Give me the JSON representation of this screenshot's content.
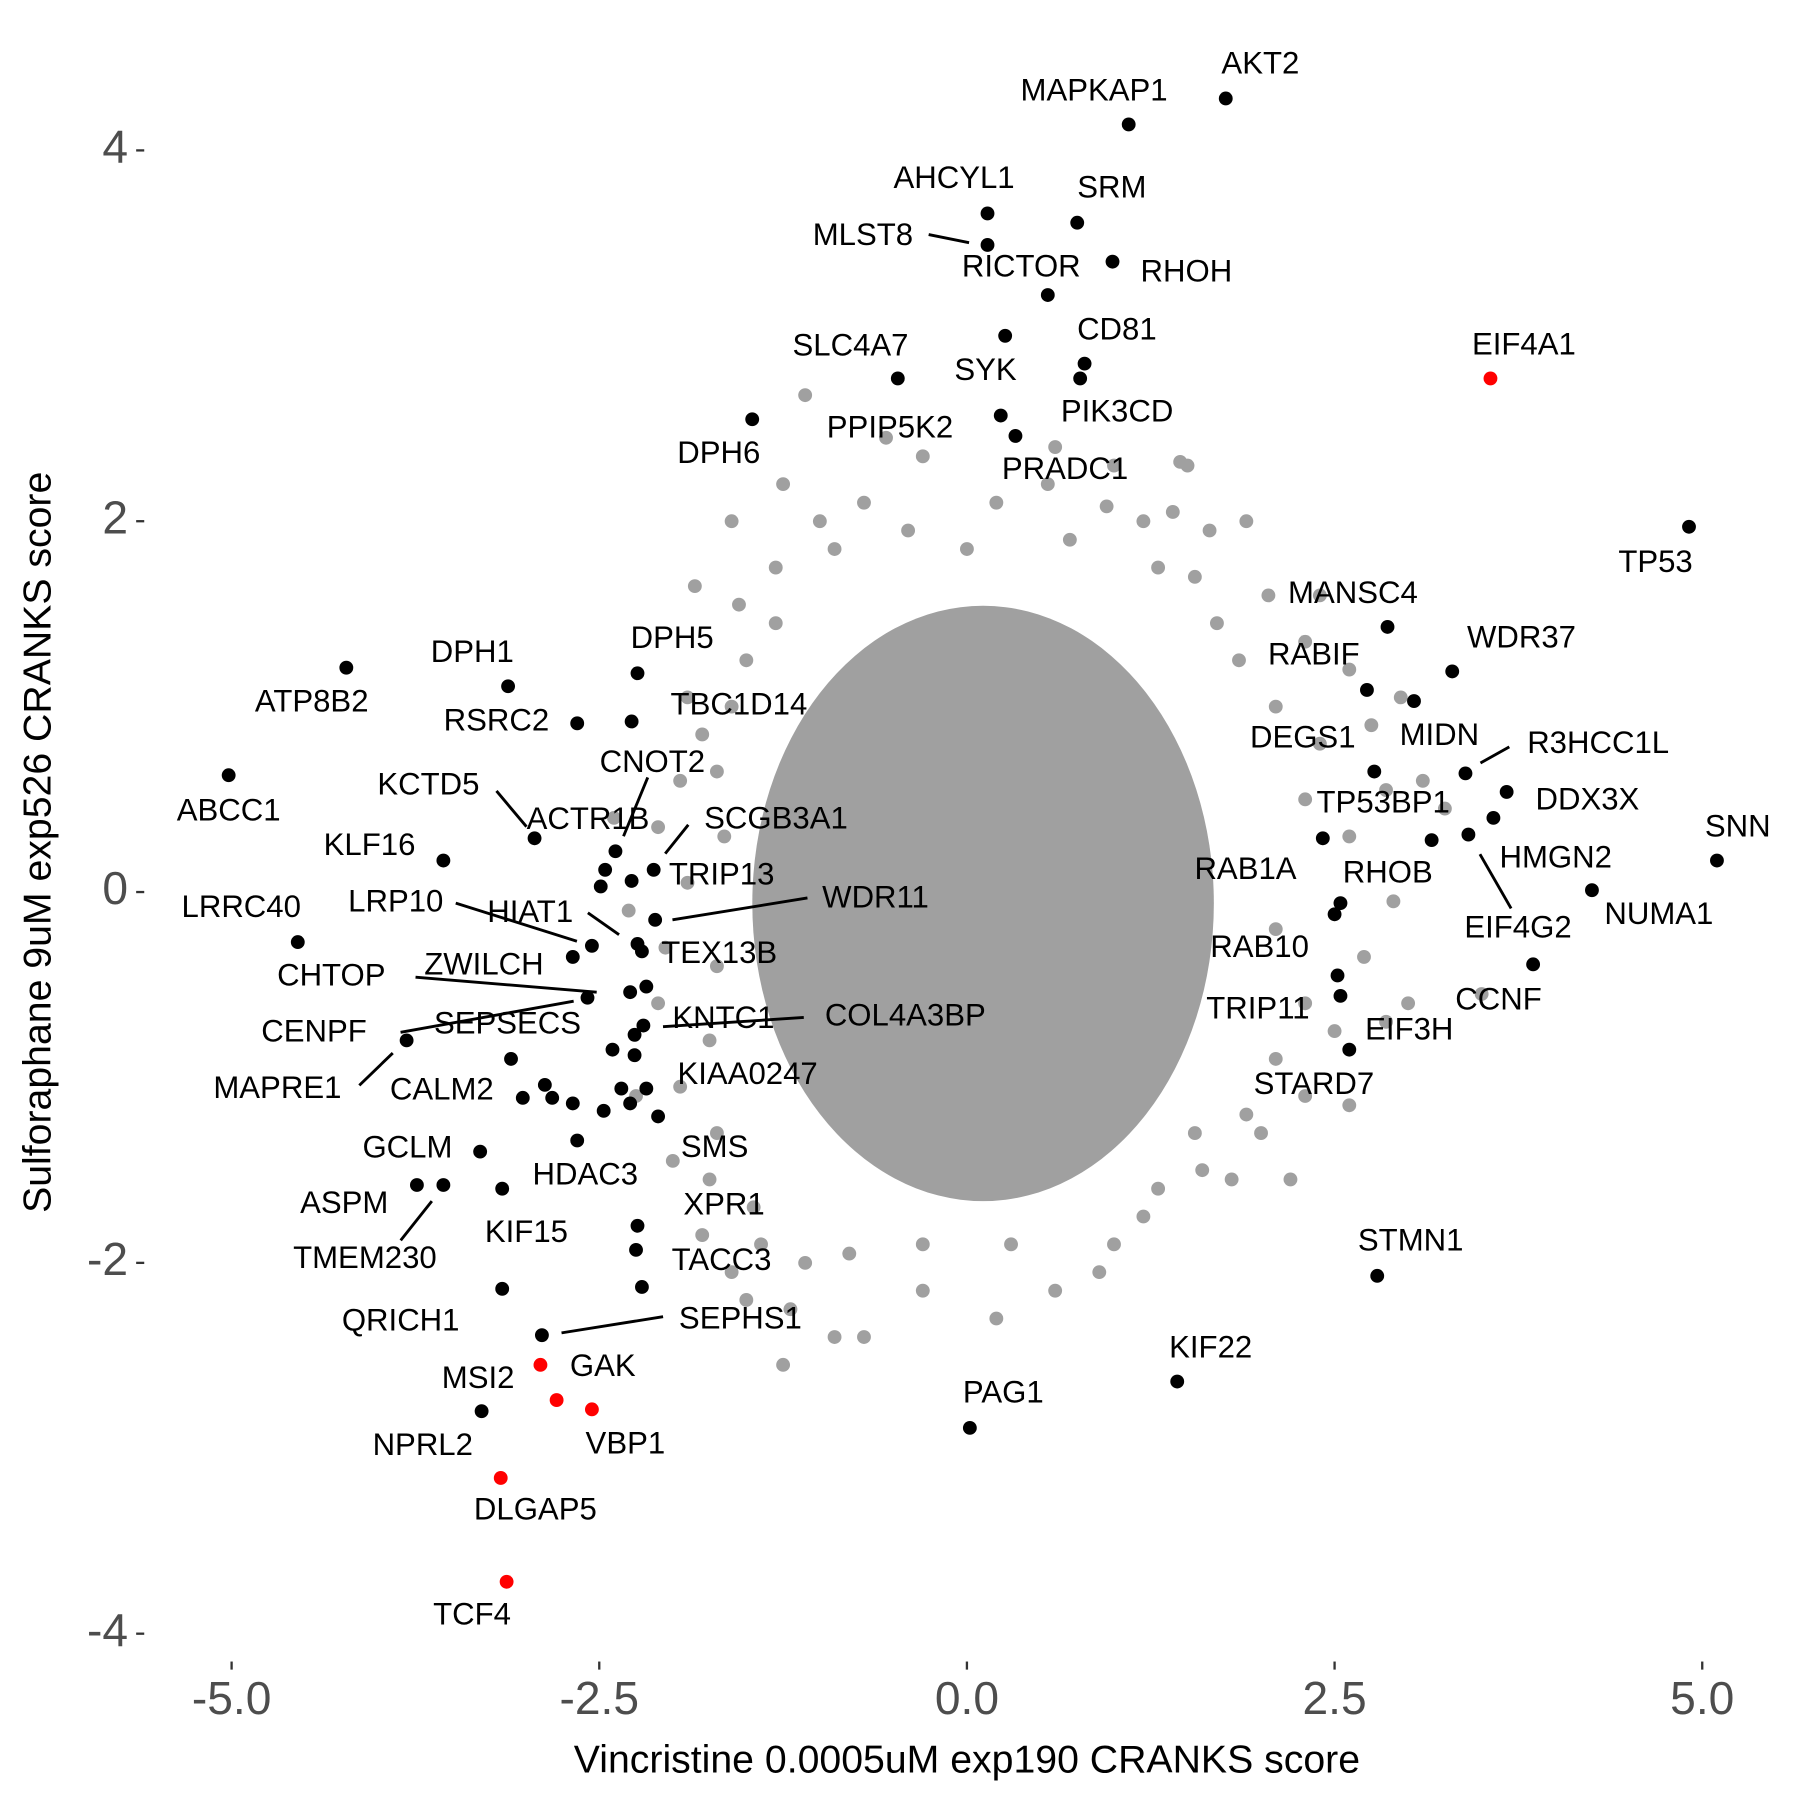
{
  "chart_data": {
    "type": "scatter",
    "x_label": "Vincristine 0.0005uM exp190 CRANKS score",
    "y_label": "Sulforaphane 9uM exp526 CRANKS score",
    "xlim": [
      -5.5,
      5.5
    ],
    "ylim": [
      -4.2,
      4.5
    ],
    "xticks": [
      {
        "value": -5,
        "label": "-5.0"
      },
      {
        "value": -2.5,
        "label": "-2.5"
      },
      {
        "value": 0,
        "label": "0.0"
      },
      {
        "value": 2.5,
        "label": "2.5"
      },
      {
        "value": 5,
        "label": "5.0"
      }
    ],
    "yticks": [
      -4,
      -2,
      0,
      2,
      4
    ],
    "series": [
      {
        "color": "#a0a0a0",
        "x": [
          -1.1,
          -0.3,
          0.6,
          1.0,
          1.45,
          0.95,
          1.4,
          1.65,
          1.9,
          2.05,
          2.3,
          2.6,
          2.95,
          2.75,
          3.1,
          2.85,
          3.25,
          2.4,
          2.6,
          2.9,
          3.5,
          3.0,
          2.5,
          2.85,
          2.3,
          2.0,
          1.6,
          1.3,
          1.8,
          1.0,
          0.6,
          0.9,
          0.2,
          -0.3,
          -0.7,
          -1.2,
          -1.25,
          -0.9,
          -1.6,
          -1.8,
          -1.75,
          -1.45,
          -2.0,
          -1.95,
          -2.1,
          -2.05,
          -1.9,
          -2.1,
          -1.95,
          -1.8,
          -1.9,
          -1.5,
          -1.85,
          -1.3,
          -1.6,
          -1.0,
          -0.7,
          -0.4,
          -1.25,
          -0.55,
          0.2,
          0.55,
          1.2,
          0.7,
          -1.3,
          -1.55,
          1.85,
          2.1,
          2.3,
          2.1,
          2.3,
          2.1,
          1.9,
          1.55,
          -1.7,
          -1.75,
          -1.7,
          -1.65,
          -1.7,
          -1.6,
          -0.3,
          0.3,
          -0.8,
          1.2,
          -1.4,
          -1.1,
          -1.5,
          1.55,
          1.3,
          1.7,
          -0.9,
          0.0,
          -2.3,
          -2.25,
          -2.4,
          2.6,
          2.2,
          2.7,
          2.4,
          1.5
        ],
        "y": [
          2.68,
          2.35,
          2.4,
          2.3,
          2.32,
          2.08,
          2.05,
          1.95,
          2.0,
          1.6,
          1.35,
          1.2,
          1.05,
          0.9,
          0.6,
          0.55,
          0.45,
          0.8,
          0.3,
          -0.05,
          -0.55,
          -0.6,
          -0.75,
          -0.7,
          -1.1,
          -1.3,
          -1.5,
          -1.6,
          -1.55,
          -1.9,
          -2.15,
          -2.05,
          -2.3,
          -2.15,
          -2.4,
          -2.25,
          -2.55,
          -2.4,
          -2.05,
          -1.85,
          -1.55,
          -1.7,
          -1.45,
          -1.05,
          -0.6,
          -0.3,
          0.05,
          0.35,
          0.6,
          0.85,
          1.05,
          1.25,
          1.65,
          1.75,
          2.0,
          2.0,
          2.1,
          1.95,
          2.2,
          2.45,
          2.1,
          2.2,
          2.0,
          1.9,
          1.45,
          1.55,
          1.25,
          1.0,
          0.5,
          -0.2,
          -0.6,
          -0.9,
          -1.2,
          -1.3,
          -1.3,
          -0.8,
          -0.4,
          0.3,
          0.65,
          1.0,
          -1.9,
          -1.9,
          -1.95,
          -1.75,
          -1.9,
          -2.0,
          -2.2,
          1.7,
          1.75,
          1.45,
          1.85,
          1.85,
          -0.1,
          -1.1,
          0.4,
          -1.15,
          -1.55,
          -0.35,
          1.6,
          2.3
        ]
      },
      {
        "color": "#000000",
        "x": [
          1.76,
          1.1,
          0.14,
          0.75,
          0.14,
          0.99,
          0.55,
          0.26,
          0.8,
          0.77,
          -0.47,
          -1.46,
          0.23,
          0.33,
          4.91,
          2.86,
          3.3,
          2.72,
          3.04,
          2.77,
          3.39,
          3.67,
          3.58,
          3.16,
          3.41,
          5.1,
          4.25,
          2.42,
          2.54,
          2.5,
          3.85,
          2.52,
          2.54,
          2.6,
          2.79,
          1.43,
          0.02,
          -4.22,
          -3.12,
          -2.24,
          -2.65,
          -2.28,
          -5.02,
          -2.39,
          -2.94,
          -2.49,
          -2.13,
          -2.28,
          -3.56,
          -2.12,
          -2.55,
          -2.24,
          -2.21,
          -4.55,
          -2.29,
          -2.68,
          -2.58,
          -2.2,
          -2.26,
          -2.41,
          -3.81,
          -3.1,
          -2.26,
          -3.31,
          -2.65,
          -2.1,
          -3.74,
          -3.56,
          -3.16,
          -2.24,
          -2.21,
          -3.16,
          -2.89,
          -3.3,
          -2.87,
          -2.82,
          -3.02,
          -2.68,
          -2.47,
          -2.35,
          -2.29,
          -2.18,
          -2.25,
          -2.46,
          -2.18
        ],
        "y": [
          4.28,
          4.14,
          3.66,
          3.61,
          3.49,
          3.4,
          3.22,
          3.0,
          2.85,
          2.77,
          2.77,
          2.55,
          2.57,
          2.46,
          1.97,
          1.43,
          1.19,
          1.09,
          1.03,
          0.65,
          0.64,
          0.54,
          0.4,
          0.28,
          0.31,
          0.17,
          0.01,
          0.29,
          -0.06,
          -0.12,
          -0.39,
          -0.45,
          -0.56,
          -0.85,
          -2.07,
          -2.64,
          -2.89,
          1.21,
          1.11,
          1.18,
          0.91,
          0.92,
          0.63,
          0.22,
          0.29,
          0.03,
          0.12,
          0.06,
          0.17,
          -0.15,
          -0.29,
          -0.28,
          -0.32,
          -0.27,
          -0.54,
          -0.35,
          -0.57,
          -0.72,
          -0.77,
          -0.85,
          -0.8,
          -0.9,
          -0.88,
          -1.4,
          -1.34,
          -1.21,
          -1.58,
          -1.58,
          -1.6,
          -1.8,
          -2.13,
          -2.14,
          -2.39,
          -2.8,
          -1.04,
          -1.11,
          -1.11,
          -1.14,
          -1.18,
          -1.06,
          -1.14,
          -1.06,
          -1.93,
          0.12,
          -0.51
        ],
        "labels": [
          "AKT2",
          "MAPKAP1",
          "AHCYL1",
          "SRM",
          "MLST8",
          "RHOH",
          "RICTOR",
          "SYK",
          "CD81",
          "PIK3CD",
          "SLC4A7",
          "DPH6",
          "PPIP5K2",
          "PRADC1",
          "TP53",
          "MANSC4",
          "WDR37",
          "RABIF",
          "MIDN",
          "DEGS1",
          "R3HCC1L",
          "DDX3X",
          "HMGN2",
          "TP53BP1",
          "EIF4G2",
          "SNN",
          "NUMA1",
          "RAB1A",
          "RHOB",
          "RAB10",
          "CCNF",
          "TRIP11",
          "STARD7",
          "EIF3H",
          "STMN1",
          "KIF22",
          "PAG1",
          "ATP8B2",
          "DPH1",
          "DPH5",
          "RSRC2",
          "TBC1D14",
          "ABCC1",
          "CNOT2",
          "KCTD5",
          "ACTR1B",
          "SCGB3A1",
          "TRIP13",
          "KLF16",
          "WDR11",
          "LRP10",
          "HIAT1",
          "TEX13B",
          "LRRC40",
          "CHTOP",
          "ZWILCH",
          "CENPF",
          "COL4A3BP",
          "KNTC1",
          "SEPSECS",
          "MAPRE1",
          "CALM2",
          "KIAA0247",
          "GCLM",
          "HDAC3",
          "SMS",
          "ASPM",
          "TMEM230",
          "KIF15",
          "XPR1",
          "TACC3",
          "QRICH1",
          "SEPHS1",
          "NPRL2",
          null,
          null,
          null,
          null,
          null,
          null,
          null,
          null,
          null,
          null,
          null
        ]
      },
      {
        "color": "#ff0000",
        "x": [
          3.56,
          -2.9,
          -2.79,
          -2.55,
          -3.17,
          -3.13
        ],
        "y": [
          2.77,
          -2.55,
          -2.74,
          -2.79,
          -3.16,
          -3.72
        ],
        "labels": [
          "EIF4A1",
          "MSI2",
          "GAK",
          "VBP1",
          "DLGAP5",
          "TCF4"
        ]
      }
    ]
  }
}
